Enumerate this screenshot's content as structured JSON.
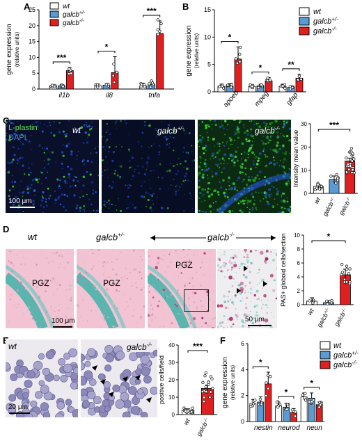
{
  "panels": {
    "A": "A",
    "B": "B",
    "C": "C",
    "D": "D",
    "E": "E",
    "F": "F"
  },
  "colors": {
    "wt": "#ffffff",
    "het": "#5b9bd5",
    "ko": "#e02020",
    "ink": "#000000"
  },
  "legend": {
    "wt": "wt",
    "het": "galcb",
    "het_sup": "+/-",
    "ko": "galcb",
    "ko_sup": "-/-"
  },
  "chart_data": [
    {
      "id": "A",
      "type": "bar",
      "ylabel_line1": "gene expression",
      "ylabel_line2": "(relative units)",
      "ylim": [
        0,
        25
      ],
      "yticks": [
        "0",
        "5",
        "10",
        "15",
        "20",
        "25"
      ],
      "categories": [
        "il1b",
        "il8",
        "tnfa"
      ],
      "series": [
        {
          "name": "wt",
          "values": [
            1.0,
            1.0,
            1.0
          ],
          "err": [
            0.3,
            0.4,
            0.8
          ]
        },
        {
          "name": "galcb+/-",
          "values": [
            1.0,
            1.2,
            1.5
          ],
          "err": [
            0.4,
            0.5,
            1.0
          ]
        },
        {
          "name": "galcb-/-",
          "values": [
            5.8,
            5.2,
            17.5
          ],
          "err": [
            1.0,
            5.0,
            4.0
          ]
        }
      ],
      "significance": [
        {
          "category": "il1b",
          "label": "***"
        },
        {
          "category": "il8",
          "label": "*"
        },
        {
          "category": "tnfa",
          "label": "***"
        }
      ]
    },
    {
      "id": "B",
      "type": "bar",
      "ylabel_line1": "gene expression",
      "ylabel_line2": "(relative units)",
      "ylim": [
        0,
        15
      ],
      "yticks": [
        "0",
        "5",
        "10",
        "15"
      ],
      "categories": [
        "apoeb",
        "mpeg",
        "gfap"
      ],
      "series": [
        {
          "name": "wt",
          "values": [
            1.0,
            1.0,
            1.0
          ],
          "err": [
            0.4,
            0.3,
            0.4
          ]
        },
        {
          "name": "galcb+/-",
          "values": [
            1.0,
            1.1,
            0.8
          ],
          "err": [
            0.5,
            0.3,
            0.3
          ]
        },
        {
          "name": "galcb-/-",
          "values": [
            6.0,
            2.0,
            2.5
          ],
          "err": [
            2.2,
            0.6,
            0.7
          ]
        }
      ],
      "significance": [
        {
          "category": "apoeb",
          "label": "*"
        },
        {
          "category": "mpeg",
          "label": "*"
        },
        {
          "category": "gfap",
          "label": "**"
        }
      ]
    },
    {
      "id": "C",
      "type": "bar",
      "ylabel": "Intensity mean value",
      "ylim": [
        0,
        30
      ],
      "yticks": [
        "0",
        "10",
        "20",
        "30"
      ],
      "categories": [
        "wt",
        "galcb+/-",
        "galcb-/-"
      ],
      "values": [
        3.0,
        6.0,
        14.0
      ],
      "err": [
        0.8,
        1.5,
        1.2
      ],
      "significance": [
        {
          "between": [
            "wt",
            "galcb-/-"
          ],
          "label": "***"
        }
      ]
    },
    {
      "id": "D",
      "type": "bar",
      "ylabel": "PAS+ globoid cells/section",
      "ylim": [
        0,
        10
      ],
      "yticks": [
        "0",
        "2",
        "4",
        "6",
        "8",
        "10"
      ],
      "categories": [
        "wt",
        "galcb+/-",
        "galcb-/-"
      ],
      "values": [
        0.5,
        0.3,
        4.3
      ],
      "err": [
        0.5,
        0.3,
        0.8
      ],
      "significance": [
        {
          "between": [
            "wt",
            "galcb-/-"
          ],
          "label": "*"
        }
      ]
    },
    {
      "id": "E",
      "type": "bar",
      "ylabel": "positive cells/field",
      "ylim": [
        0,
        40
      ],
      "yticks": [
        "0",
        "10",
        "20",
        "30",
        "40"
      ],
      "categories": [
        "wt",
        "galcb-/-"
      ],
      "values": [
        2.5,
        15.0
      ],
      "err": [
        0.8,
        2.0
      ],
      "significance": [
        {
          "between": [
            "wt",
            "galcb-/-"
          ],
          "label": "***"
        }
      ]
    },
    {
      "id": "F",
      "type": "bar",
      "ylabel_line1": "gene expression",
      "ylabel_line2": "(relative units)",
      "ylim": [
        0,
        6
      ],
      "yticks": [
        "0",
        "2",
        "4",
        "6"
      ],
      "categories": [
        "nestin",
        "neurod",
        "neun"
      ],
      "series": [
        {
          "name": "wt",
          "values": [
            1.4,
            1.2,
            1.9
          ],
          "err": [
            0.3,
            0.3,
            0.3
          ]
        },
        {
          "name": "galcb+/-",
          "values": [
            1.5,
            1.1,
            1.8
          ],
          "err": [
            0.4,
            0.3,
            0.4
          ]
        },
        {
          "name": "galcb-/-",
          "values": [
            2.9,
            0.7,
            1.3
          ],
          "err": [
            0.9,
            0.3,
            0.2
          ]
        }
      ],
      "significance": [
        {
          "category": "nestin",
          "label": "*"
        },
        {
          "category": "neurod",
          "label": "*"
        },
        {
          "category": "neun",
          "label": "*"
        }
      ]
    }
  ],
  "micrographs": {
    "c_wt_stain": "L-plastin",
    "c_wt_dapi": "DAPI",
    "c_wt_geno": "wt",
    "c_het_geno": "galcb",
    "c_het_sup": "+/-",
    "c_ko_geno": "galcb",
    "c_ko_sup": "-/-",
    "c_scale": "100 μm",
    "d_wt_geno": "wt",
    "d_het_geno": "galcb",
    "d_het_sup": "+/-",
    "d_ko_geno": "galcb",
    "d_ko_sup": "-/-",
    "d_pgz": "PGZ",
    "d_scale1": "100 μm",
    "d_scale2": "50 μm",
    "e_wt_geno": "wt",
    "e_ko_geno": "galcb",
    "e_ko_sup": "-/-",
    "e_scale": "20 μm"
  }
}
